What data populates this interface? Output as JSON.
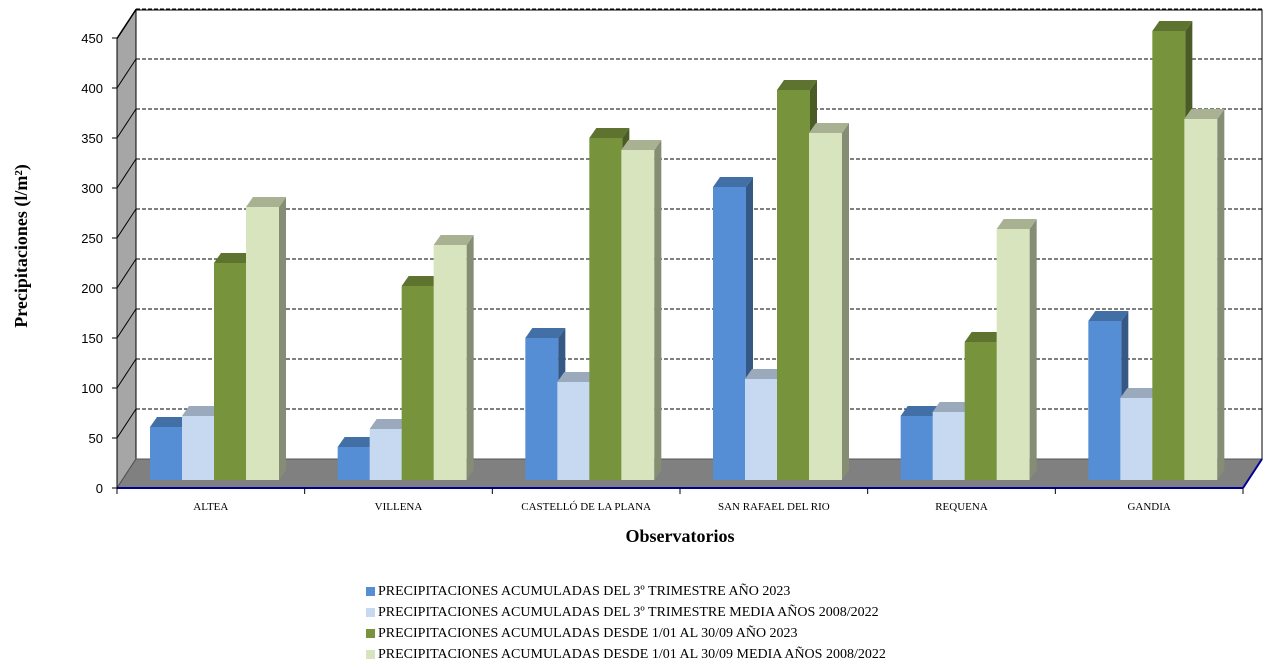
{
  "chart_data": {
    "type": "bar",
    "ylabel": "Precipitaciones (l/m²)",
    "xlabel": "Observatorios",
    "ylim": [
      0,
      450
    ],
    "yticks": [
      0,
      50,
      100,
      150,
      200,
      250,
      300,
      350,
      400,
      450
    ],
    "categories": [
      "ALTEA",
      "VILLENA",
      "CASTELLÓ DE LA PLANA",
      "SAN RAFAEL DEL RIO",
      "REQUENA",
      "GANDIA"
    ],
    "series": [
      {
        "name": "PRECIPITACIONES ACUMULADAS DEL 3º TRIMESTRE AÑO 2023",
        "color": "#558ed5",
        "values": [
          53,
          33,
          142,
          293,
          64,
          159
        ]
      },
      {
        "name": "PRECIPITACIONES ACUMULADAS DEL 3º TRIMESTRE MEDIA AÑOS 2008/2022",
        "color": "#c6d9f1",
        "values": [
          64,
          51,
          98,
          101,
          68,
          82
        ]
      },
      {
        "name": "PRECIPITACIONES ACUMULADAS DESDE 1/01 AL 30/09 AÑO 2023",
        "color": "#77933c",
        "values": [
          217,
          194,
          342,
          390,
          138,
          449
        ]
      },
      {
        "name": "PRECIPITACIONES ACUMULADAS DESDE 1/01 AL 30/09 MEDIA AÑOS 2008/2022",
        "color": "#d7e4bd",
        "values": [
          273,
          235,
          330,
          347,
          251,
          361
        ]
      }
    ],
    "grid": true,
    "legend_position": "bottom"
  }
}
